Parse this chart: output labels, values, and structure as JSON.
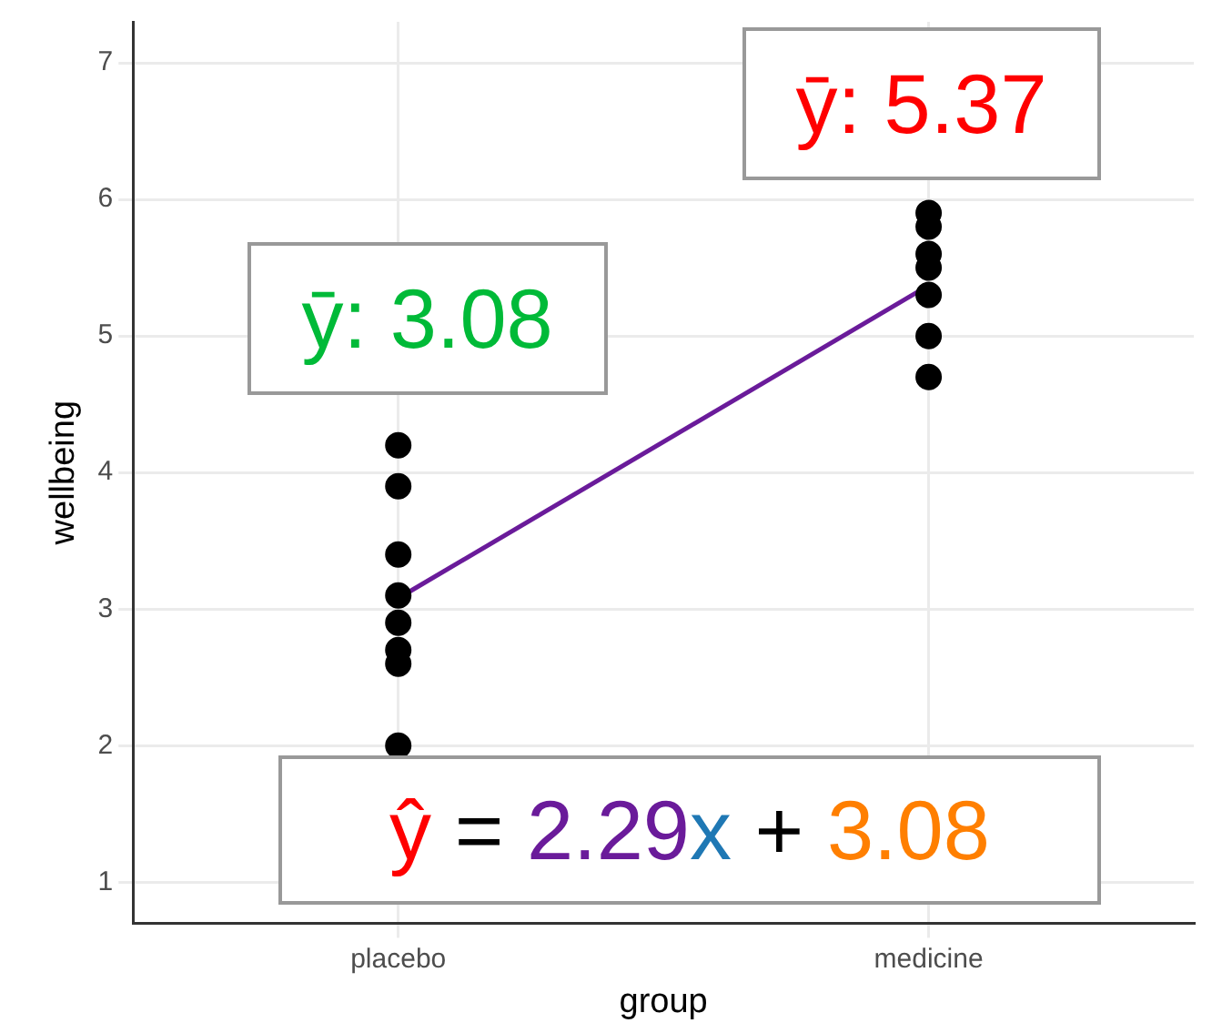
{
  "chart_data": {
    "type": "scatter",
    "xlabel": "group",
    "ylabel": "wellbeing",
    "categories": [
      "placebo",
      "medicine"
    ],
    "series": [
      {
        "color": "#000000",
        "x": [
          "placebo",
          "placebo",
          "placebo",
          "placebo",
          "placebo",
          "placebo",
          "placebo",
          "placebo"
        ],
        "values": [
          4.2,
          3.9,
          3.4,
          3.1,
          2.9,
          2.7,
          2.6,
          2.0
        ],
        "marker": "circle"
      },
      {
        "color": "#000000",
        "x": [
          "medicine",
          "medicine",
          "medicine",
          "medicine",
          "medicine",
          "medicine",
          "medicine"
        ],
        "values": [
          5.9,
          5.8,
          5.6,
          5.5,
          5.3,
          5.0,
          4.7
        ],
        "marker": "circle"
      },
      {
        "type": "line",
        "color": "#6a1b9a",
        "x": [
          "placebo",
          "medicine"
        ],
        "values": [
          3.08,
          5.37
        ],
        "marker": "none"
      }
    ],
    "annotations": [
      {
        "text": "ȳ: 3.08",
        "x": "placebo",
        "y": 3.08
      },
      {
        "text": "ȳ: 5.37",
        "x": "medicine",
        "y": 5.37
      },
      "ŷ = 2.29x + 3.08"
    ],
    "ylim": [
      0.7,
      7.3
    ],
    "yticks": [
      1,
      2,
      3,
      4,
      5,
      6,
      7
    ],
    "grid": true,
    "legend": false
  }
}
